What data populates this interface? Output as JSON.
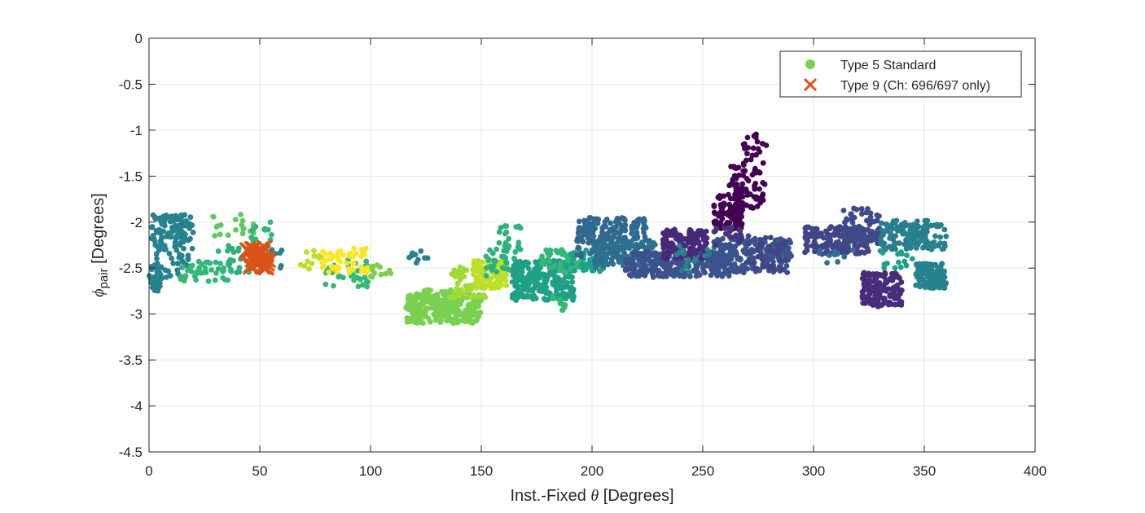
{
  "chart_data": {
    "type": "scatter",
    "title": "",
    "xlabel_main": "Inst.-Fixed ",
    "xlabel_symbol": "θ",
    "xlabel_unit": " [Degrees]",
    "ylabel_symbol": "ϕ",
    "ylabel_sub": "pair",
    "ylabel_unit": " [Degrees]",
    "xlim": [
      0,
      400
    ],
    "ylim": [
      -4.5,
      0
    ],
    "xticks": [
      0,
      50,
      100,
      150,
      200,
      250,
      300,
      350,
      400
    ],
    "yticks": [
      0,
      -0.5,
      -1,
      -1.5,
      -2,
      -2.5,
      -3,
      -3.5,
      -4,
      -4.5
    ],
    "ytick_labels": [
      "0",
      "-0.5",
      "-1",
      "-1.5",
      "-2",
      "-2.5",
      "-3",
      "-3.5",
      "-4",
      "-4.5"
    ],
    "grid": true,
    "legend_position": "top-right",
    "colormap": "viridis",
    "series": [
      {
        "name": "Type 5 Standard",
        "marker": "circle",
        "legend_color": "#7AD151",
        "clusters": [
          {
            "x": [
              0,
              6
            ],
            "y": [
              -2.75,
              -2.45
            ],
            "color": "#26828E",
            "n": 40
          },
          {
            "x": [
              1,
              20
            ],
            "y": [
              -2.3,
              -1.92
            ],
            "color": "#26828E",
            "n": 110
          },
          {
            "x": [
              3,
              18
            ],
            "y": [
              -2.6,
              -2.3
            ],
            "color": "#26828E",
            "n": 30
          },
          {
            "x": [
              14,
              38
            ],
            "y": [
              -2.65,
              -2.42
            ],
            "color": "#35B779",
            "n": 40
          },
          {
            "x": [
              26,
              48
            ],
            "y": [
              -2.15,
              -1.9
            ],
            "color": "#5EC962",
            "n": 20
          },
          {
            "x": [
              30,
              48
            ],
            "y": [
              -2.55,
              -2.25
            ],
            "color": "#2DB27D",
            "n": 25
          },
          {
            "x": [
              45,
              56
            ],
            "y": [
              -2.5,
              -2.0
            ],
            "color": "#35B779",
            "n": 25
          },
          {
            "x": [
              51,
              60
            ],
            "y": [
              -2.5,
              -2.3
            ],
            "color": "#26828E",
            "n": 10
          },
          {
            "x": [
              66,
              78
            ],
            "y": [
              -2.55,
              -2.3
            ],
            "color": "#BDDF26",
            "n": 12
          },
          {
            "x": [
              78,
              100
            ],
            "y": [
              -2.72,
              -2.4
            ],
            "color": "#35B779",
            "n": 30
          },
          {
            "x": [
              78,
              92
            ],
            "y": [
              -2.55,
              -2.3
            ],
            "color": "#FDE725",
            "n": 30
          },
          {
            "x": [
              92,
              100
            ],
            "y": [
              -2.55,
              -2.25
            ],
            "color": "#FDE725",
            "n": 20
          },
          {
            "x": [
              100,
              110
            ],
            "y": [
              -2.6,
              -2.45
            ],
            "color": "#7AD151",
            "n": 12
          },
          {
            "x": [
              116,
              126
            ],
            "y": [
              -2.45,
              -2.3
            ],
            "color": "#26828E",
            "n": 10
          },
          {
            "x": [
              116,
              150
            ],
            "y": [
              -3.1,
              -2.78
            ],
            "color": "#7AD151",
            "n": 260
          },
          {
            "x": [
              118,
              140
            ],
            "y": [
              -2.92,
              -2.72
            ],
            "color": "#7AD151",
            "n": 60
          },
          {
            "x": [
              136,
              152
            ],
            "y": [
              -2.82,
              -2.48
            ],
            "color": "#A0DA39",
            "n": 60
          },
          {
            "x": [
              146,
              162
            ],
            "y": [
              -2.72,
              -2.42
            ],
            "color": "#BDDF26",
            "n": 90
          },
          {
            "x": [
              152,
              168
            ],
            "y": [
              -2.62,
              -2.2
            ],
            "color": "#2DB27D",
            "n": 40
          },
          {
            "x": [
              158,
              168
            ],
            "y": [
              -2.2,
              -2.02
            ],
            "color": "#2DB27D",
            "n": 12
          },
          {
            "x": [
              164,
              192
            ],
            "y": [
              -2.85,
              -2.42
            ],
            "color": "#1FA187",
            "n": 240
          },
          {
            "x": [
              176,
              196
            ],
            "y": [
              -2.55,
              -2.3
            ],
            "color": "#35B779",
            "n": 50
          },
          {
            "x": [
              182,
              188
            ],
            "y": [
              -2.98,
              -2.78
            ],
            "color": "#35B779",
            "n": 10
          },
          {
            "x": [
              190,
              206
            ],
            "y": [
              -2.55,
              -2.3
            ],
            "color": "#1FA187",
            "n": 40
          },
          {
            "x": [
              193,
              225
            ],
            "y": [
              -2.4,
              -1.95
            ],
            "color": "#31688E",
            "n": 200
          },
          {
            "x": [
              200,
              230
            ],
            "y": [
              -2.5,
              -2.2
            ],
            "color": "#2C728E",
            "n": 120
          },
          {
            "x": [
              215,
              262
            ],
            "y": [
              -2.6,
              -2.32
            ],
            "color": "#3B528B",
            "n": 260
          },
          {
            "x": [
              232,
              252
            ],
            "y": [
              -2.4,
              -2.08
            ],
            "color": "#482878",
            "n": 150
          },
          {
            "x": [
              238,
              258
            ],
            "y": [
              -2.55,
              -2.25
            ],
            "color": "#26828E",
            "n": 20
          },
          {
            "x": [
              255,
              268
            ],
            "y": [
              -2.08,
              -1.7
            ],
            "color": "#440154",
            "n": 90
          },
          {
            "x": [
              262,
              278
            ],
            "y": [
              -1.85,
              -1.35
            ],
            "color": "#440154",
            "n": 70
          },
          {
            "x": [
              268,
              279
            ],
            "y": [
              -1.35,
              -1.02
            ],
            "color": "#440154",
            "n": 20
          },
          {
            "x": [
              254,
              290
            ],
            "y": [
              -2.55,
              -2.18
            ],
            "color": "#3B528B",
            "n": 220
          },
          {
            "x": [
              255,
              268
            ],
            "y": [
              -2.25,
              -2.05
            ],
            "color": "#46337E",
            "n": 20
          },
          {
            "x": [
              270,
              288
            ],
            "y": [
              -2.52,
              -2.15
            ],
            "color": "#414487",
            "n": 40
          },
          {
            "x": [
              296,
              326
            ],
            "y": [
              -2.35,
              -2.05
            ],
            "color": "#414487",
            "n": 160
          },
          {
            "x": [
              312,
              330
            ],
            "y": [
              -2.25,
              -1.85
            ],
            "color": "#3E4A89",
            "n": 80
          },
          {
            "x": [
              300,
              322
            ],
            "y": [
              -2.45,
              -2.3
            ],
            "color": "#2C728E",
            "n": 10
          },
          {
            "x": [
              322,
              340
            ],
            "y": [
              -2.92,
              -2.55
            ],
            "color": "#472D7B",
            "n": 140
          },
          {
            "x": [
              330,
              352
            ],
            "y": [
              -2.3,
              -1.98
            ],
            "color": "#287D8E",
            "n": 100
          },
          {
            "x": [
              342,
              360
            ],
            "y": [
              -2.3,
              -2.02
            ],
            "color": "#26828E",
            "n": 50
          },
          {
            "x": [
              330,
              346
            ],
            "y": [
              -2.5,
              -2.3
            ],
            "color": "#1FA187",
            "n": 15
          },
          {
            "x": [
              346,
              360
            ],
            "y": [
              -2.72,
              -2.45
            ],
            "color": "#26828E",
            "n": 120
          }
        ]
      },
      {
        "name": "Type 9 (Ch: 696/697 only)",
        "marker": "x",
        "legend_color": "#D95319",
        "clusters": [
          {
            "x": [
              44,
              54
            ],
            "y": [
              -2.5,
              -2.28
            ],
            "color": "#D95319",
            "n": 30
          }
        ]
      }
    ]
  }
}
